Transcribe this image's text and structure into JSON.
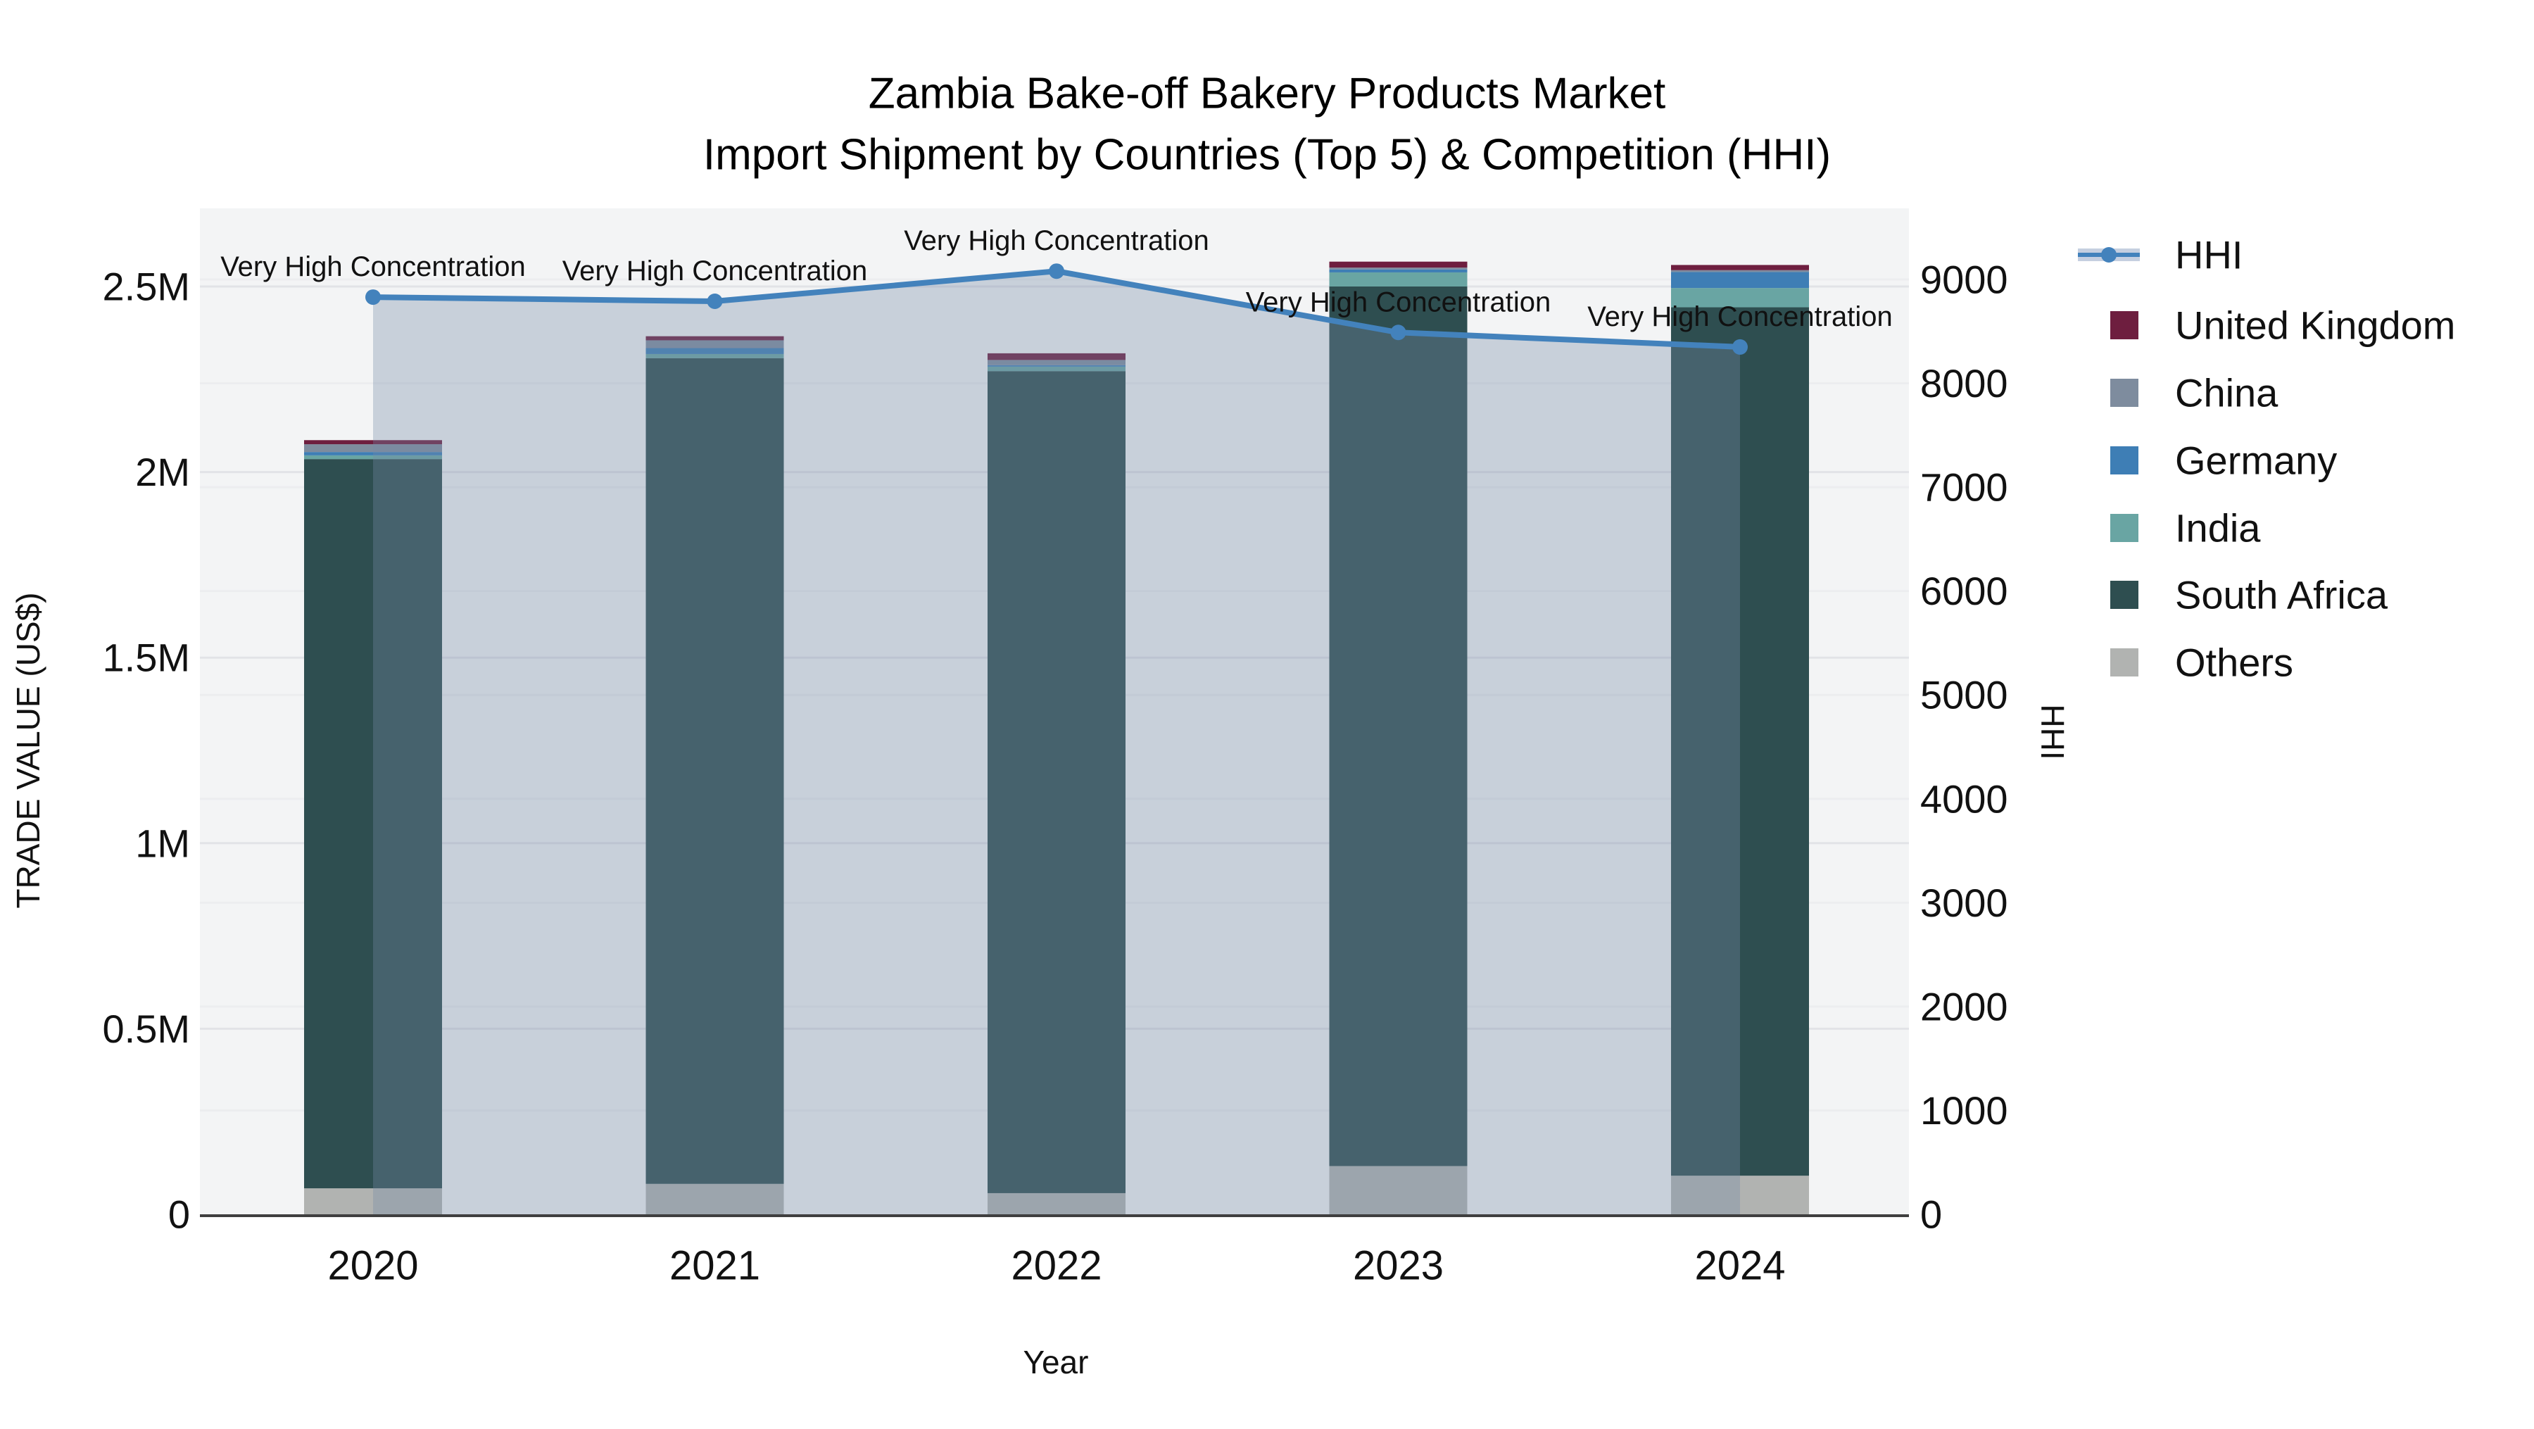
{
  "page": {
    "background": "#ffffff"
  },
  "chart_data": {
    "type": "bar+line",
    "title": "Zambia Bake-off Bakery Products Market",
    "subtitle": "Import Shipment by Countries (Top 5) & Competition (HHI)",
    "xlabel": "Year",
    "categories": [
      "2020",
      "2021",
      "2022",
      "2023",
      "2024"
    ],
    "series": [
      {
        "name": "United Kingdom",
        "color": "#6E1E3F",
        "values": [
          11000,
          11000,
          18000,
          16000,
          14000
        ]
      },
      {
        "name": "China",
        "color": "#7E8C9E",
        "values": [
          21000,
          21000,
          14000,
          5000,
          5000
        ]
      },
      {
        "name": "Germany",
        "color": "#3E7EB5",
        "values": [
          9000,
          16000,
          4000,
          8000,
          43000
        ]
      },
      {
        "name": "India",
        "color": "#69A5A3",
        "values": [
          10000,
          11000,
          12000,
          38000,
          52000
        ]
      },
      {
        "name": "South Africa",
        "color": "#2E4E50",
        "values": [
          1965000,
          2225000,
          2215000,
          2370000,
          2340000
        ]
      },
      {
        "name": "Others",
        "color": "#B1B3B1",
        "values": [
          70000,
          82000,
          57000,
          130000,
          104000
        ]
      }
    ],
    "stack_order_top_to_bottom": [
      "United Kingdom",
      "China",
      "Germany",
      "India",
      "South Africa",
      "Others"
    ],
    "hhi": {
      "name": "HHI",
      "values": [
        8830,
        8790,
        9080,
        8490,
        8350
      ],
      "line_color": "#4382BC",
      "area_fill_color": "118,138,166",
      "area_fill_opacity": 0.34,
      "legend_band_color": "#C5CFE0"
    },
    "annotations": [
      {
        "x": "2020",
        "text": "Very High Concentration"
      },
      {
        "x": "2021",
        "text": "Very High Concentration"
      },
      {
        "x": "2022",
        "text": "Very High Concentration"
      },
      {
        "x": "2023",
        "text": "Very High Concentration"
      },
      {
        "x": "2024",
        "text": "Very High Concentration"
      }
    ],
    "axes": {
      "left": {
        "title": "TRADE VALUE (US$)",
        "ticks": [
          "0",
          "0.5M",
          "1M",
          "1.5M",
          "2M",
          "2.5M"
        ],
        "max": 2500000
      },
      "right": {
        "title": "HHI",
        "ticks": [
          "0",
          "1000",
          "2000",
          "3000",
          "4000",
          "5000",
          "6000",
          "7000",
          "8000",
          "9000"
        ],
        "max": 9000
      }
    },
    "layout_hints": {
      "legend_position": "right",
      "grid": "on",
      "plot_bg": "#F3F4F5",
      "grid_color_left": "#E2E3E7",
      "grid_color_right": "#ECEDEF",
      "axis_line_color": "#3F3F3F",
      "text_color": "#111111"
    }
  }
}
